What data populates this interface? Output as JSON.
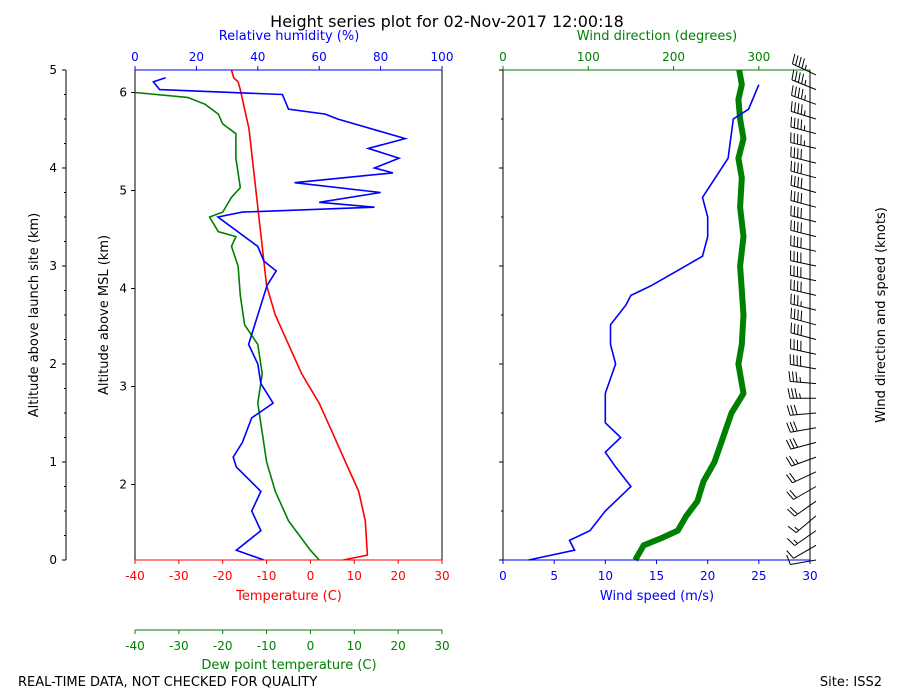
{
  "title": "Height series plot for 02-Nov-2017 12:00:18",
  "footer_left": "REAL-TIME DATA, NOT CHECKED FOR QUALITY",
  "footer_right": "Site: ISS2",
  "colors": {
    "temperature": "#ff0000",
    "dewpoint": "#008000",
    "humidity": "#0000ff",
    "wind_speed": "#0000ff",
    "wind_direction": "#008000",
    "barbs": "#000000"
  },
  "chart_data": [
    {
      "type": "line",
      "title": "Thermodynamic profile",
      "ylabel_left": "Altitude above launch site (km)",
      "ylabel_right": "Altitude above MSL (km)",
      "left_axis": {
        "range": [
          0,
          5
        ],
        "ticks": [
          0,
          1,
          2,
          3,
          4,
          5
        ]
      },
      "msl_axis": {
        "range": [
          1.23,
          6.23
        ],
        "ticks": [
          2,
          3,
          4,
          5,
          6
        ]
      },
      "x_axes": [
        {
          "label": "Temperature (C)",
          "position": "bottom",
          "range": [
            -40,
            30
          ],
          "ticks": [
            -40,
            -30,
            -20,
            -10,
            0,
            10,
            20,
            30
          ]
        },
        {
          "label": "Dew point temperature (C)",
          "position": "bottom-offset",
          "range": [
            -40,
            30
          ],
          "ticks": [
            -40,
            -30,
            -20,
            -10,
            0,
            10,
            20,
            30
          ]
        },
        {
          "label": "Relative humidity (%)",
          "position": "top",
          "range": [
            0,
            100
          ],
          "ticks": [
            0,
            20,
            40,
            60,
            80,
            100
          ]
        }
      ],
      "series": [
        {
          "name": "Temperature",
          "axis": "Temperature (C)",
          "x": [
            7.5,
            13,
            12.5,
            11,
            8,
            5,
            2,
            -2,
            -5,
            -8,
            -10,
            -11,
            -12,
            -13,
            -14,
            -15,
            -16,
            -16.5,
            -17.5,
            -18
          ],
          "y": [
            0,
            0.05,
            0.4,
            0.7,
            1.0,
            1.3,
            1.6,
            1.9,
            2.2,
            2.5,
            2.8,
            3.2,
            3.6,
            4.0,
            4.4,
            4.6,
            4.8,
            4.88,
            4.92,
            5.0
          ]
        },
        {
          "name": "Dew point",
          "axis": "Dew point temperature (C)",
          "x": [
            2,
            0,
            -5,
            -8,
            -10,
            -11,
            -12,
            -11,
            -12,
            -15,
            -16,
            -16.5,
            -18,
            -17,
            -21,
            -23,
            -20,
            -18,
            -16,
            -17,
            -17,
            -20,
            -21,
            -24,
            -28,
            -40
          ],
          "y": [
            0,
            0.1,
            0.4,
            0.7,
            1.0,
            1.3,
            1.6,
            1.9,
            2.2,
            2.4,
            2.7,
            3.0,
            3.2,
            3.3,
            3.35,
            3.5,
            3.55,
            3.7,
            3.8,
            4.1,
            4.35,
            4.45,
            4.55,
            4.65,
            4.72,
            4.77
          ]
        },
        {
          "name": "Relative humidity",
          "axis": "Relative humidity (%)",
          "x": [
            42,
            33,
            41,
            38,
            41,
            33,
            32,
            35,
            38,
            45,
            41,
            40,
            37,
            40,
            43,
            46,
            42,
            40,
            27,
            35,
            78,
            60,
            80,
            52,
            84,
            78,
            86,
            76,
            88,
            66,
            62,
            50,
            48,
            8,
            6,
            10
          ],
          "y": [
            0,
            0.1,
            0.3,
            0.5,
            0.7,
            0.95,
            1.05,
            1.2,
            1.45,
            1.6,
            1.8,
            2.0,
            2.2,
            2.5,
            2.8,
            2.95,
            3.05,
            3.2,
            3.5,
            3.55,
            3.6,
            3.65,
            3.75,
            3.85,
            3.95,
            4.0,
            4.1,
            4.2,
            4.3,
            4.5,
            4.55,
            4.6,
            4.75,
            4.8,
            4.88,
            4.92
          ]
        }
      ]
    },
    {
      "type": "line",
      "title": "Wind profile",
      "ylabel_right": "Wind direction and speed (knots)",
      "y_range": [
        0,
        5
      ],
      "x_axes": [
        {
          "label": "Wind speed (m/s)",
          "position": "bottom",
          "range": [
            0,
            30
          ],
          "ticks": [
            0,
            5,
            10,
            15,
            20,
            25,
            30
          ]
        },
        {
          "label": "Wind direction (degrees)",
          "position": "top",
          "range": [
            0,
            360
          ],
          "ticks": [
            0,
            100,
            200,
            300
          ]
        }
      ],
      "series": [
        {
          "name": "Wind speed",
          "axis": "Wind speed (m/s)",
          "x": [
            2.5,
            7,
            6.5,
            8.5,
            10,
            12,
            12.5,
            11,
            10,
            11.5,
            10,
            10,
            11,
            10.5,
            10.5,
            12,
            12.5,
            14.5,
            17,
            19.5,
            20,
            20,
            19.5,
            22,
            22.5,
            24,
            25
          ],
          "y": [
            0,
            0.1,
            0.2,
            0.3,
            0.5,
            0.7,
            0.75,
            0.95,
            1.1,
            1.25,
            1.4,
            1.7,
            2.0,
            2.2,
            2.4,
            2.6,
            2.7,
            2.8,
            2.95,
            3.1,
            3.3,
            3.5,
            3.7,
            4.1,
            4.5,
            4.6,
            4.85
          ]
        },
        {
          "name": "Wind direction",
          "axis": "Wind direction (degrees)",
          "x": [
            155,
            165,
            185,
            205,
            215,
            228,
            235,
            248,
            258,
            268,
            282,
            276,
            280,
            282,
            278,
            282,
            278,
            280,
            276,
            282,
            278,
            276,
            280,
            278,
            277
          ],
          "y": [
            0,
            0.15,
            0.22,
            0.3,
            0.45,
            0.6,
            0.8,
            1.0,
            1.25,
            1.5,
            1.7,
            2.0,
            2.2,
            2.5,
            3.0,
            3.3,
            3.6,
            3.9,
            4.1,
            4.3,
            4.5,
            4.7,
            4.85,
            4.95,
            5.0
          ]
        },
        {
          "name": "Wind barbs (knots)",
          "axis": "barbs",
          "x": [
            260,
            240,
            235,
            230,
            235,
            240,
            245,
            250,
            255,
            260,
            265,
            270,
            275,
            280,
            282,
            285,
            285,
            284,
            283,
            282,
            282,
            283,
            284,
            284,
            285,
            286,
            285,
            284,
            283,
            285,
            287,
            290,
            292,
            295
          ],
          "y": [
            0,
            0.15,
            0.3,
            0.45,
            0.6,
            0.75,
            0.9,
            1.05,
            1.2,
            1.35,
            1.5,
            1.65,
            1.8,
            1.95,
            2.1,
            2.25,
            2.4,
            2.55,
            2.7,
            2.85,
            3.0,
            3.15,
            3.3,
            3.45,
            3.6,
            3.75,
            3.9,
            4.05,
            4.2,
            4.35,
            4.5,
            4.65,
            4.8,
            4.95
          ],
          "speed_knots": [
            10,
            14,
            16,
            18,
            20,
            22,
            24,
            26,
            30,
            32,
            34,
            36,
            38,
            40,
            42,
            40,
            40,
            38,
            40,
            42,
            40,
            40,
            42,
            40,
            44,
            44,
            44,
            44,
            46,
            46,
            46,
            48,
            48,
            48
          ]
        }
      ]
    }
  ]
}
